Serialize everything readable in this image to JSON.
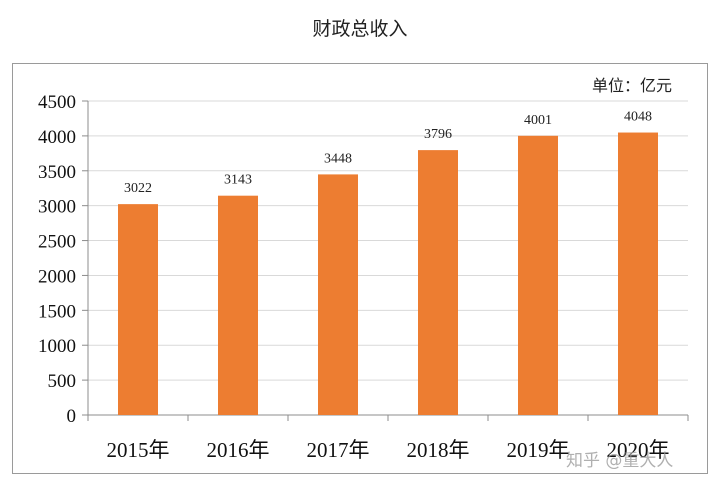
{
  "chart_data": {
    "type": "bar",
    "title": "财政总收入",
    "unit_label": "单位：亿元",
    "categories": [
      "2015年",
      "2016年",
      "2017年",
      "2018年",
      "2019年",
      "2020年"
    ],
    "values": [
      3022,
      3143,
      3448,
      3796,
      4001,
      4048
    ],
    "ylim": [
      0,
      4500
    ],
    "yticks": [
      0,
      500,
      1000,
      1500,
      2000,
      2500,
      3000,
      3500,
      4000,
      4500
    ],
    "grid": true,
    "legend": "none",
    "bar_color": "#ED7D31"
  },
  "watermark": "知乎 @重大人"
}
